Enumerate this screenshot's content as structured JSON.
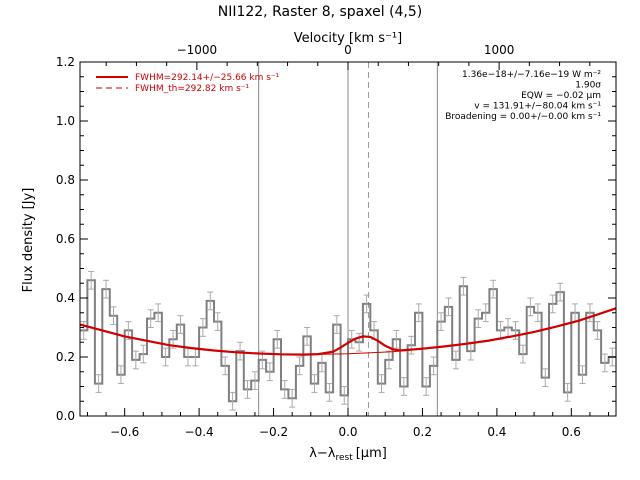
{
  "chart_data": {
    "type": "line",
    "title": "NII122, Raster 8, spaxel (4,5)",
    "xlabel": "λ−λ",
    "xlabel_sub": "rest",
    "xlabel_unit": "[μm]",
    "ylabel": "Flux density [Jy]",
    "top_axis_label": "Velocity [km s⁻¹]",
    "xlim": [
      -0.72,
      0.72
    ],
    "ylim": [
      0.0,
      1.2
    ],
    "x_ticks": [
      "−0.6",
      "−0.4",
      "−0.2",
      "0.0",
      "0.2",
      "0.4",
      "0.6"
    ],
    "x_tick_values": [
      -0.6,
      -0.4,
      -0.2,
      0.0,
      0.2,
      0.4,
      0.6
    ],
    "y_ticks": [
      "0.0",
      "0.2",
      "0.4",
      "0.6",
      "0.8",
      "1.0",
      "1.2"
    ],
    "y_tick_values": [
      0.0,
      0.2,
      0.4,
      0.6,
      0.8,
      1.0,
      1.2
    ],
    "top_ticks": [
      "−1000",
      "0",
      "1000"
    ],
    "top_tick_values": [
      -1000,
      0,
      1000
    ],
    "velocity_scale_um_per_kms": 0.000406,
    "vertical_lines": {
      "solid": [
        -0.24,
        0.0,
        0.24
      ],
      "dashed": [
        0.055
      ]
    },
    "legend": [
      {
        "label": "FWHM=292.14+/−25.66 km s⁻¹",
        "style": "solid",
        "color": "#d00000"
      },
      {
        "label": "FWHM_th=292.82 km s⁻¹",
        "style": "dashed",
        "color": "#d00000"
      }
    ],
    "annotations": [
      "1.36e−18+/−7.16e−19 W m⁻²",
      "1.90σ",
      "EQW = −0.02 μm",
      "v = 131.91+/−80.04 km s⁻¹",
      "Broadening = 0.00+/−0.00 km s⁻¹"
    ],
    "series": [
      {
        "name": "spectrum",
        "style": "step",
        "color": "#808080",
        "x": [
          -0.72,
          -0.7,
          -0.68,
          -0.66,
          -0.64,
          -0.62,
          -0.6,
          -0.58,
          -0.56,
          -0.54,
          -0.52,
          -0.5,
          -0.48,
          -0.46,
          -0.44,
          -0.42,
          -0.4,
          -0.38,
          -0.36,
          -0.34,
          -0.32,
          -0.3,
          -0.28,
          -0.26,
          -0.24,
          -0.22,
          -0.2,
          -0.18,
          -0.16,
          -0.14,
          -0.12,
          -0.1,
          -0.08,
          -0.06,
          -0.04,
          -0.02,
          0.0,
          0.02,
          0.04,
          0.06,
          0.08,
          0.1,
          0.12,
          0.14,
          0.16,
          0.18,
          0.2,
          0.22,
          0.24,
          0.26,
          0.28,
          0.3,
          0.32,
          0.34,
          0.36,
          0.38,
          0.4,
          0.42,
          0.44,
          0.46,
          0.48,
          0.5,
          0.52,
          0.54,
          0.56,
          0.58,
          0.6,
          0.62,
          0.64,
          0.66,
          0.68,
          0.7
        ],
        "y": [
          0.29,
          0.46,
          0.11,
          0.43,
          0.34,
          0.14,
          0.29,
          0.19,
          0.21,
          0.33,
          0.35,
          0.2,
          0.26,
          0.31,
          0.2,
          0.2,
          0.3,
          0.39,
          0.32,
          0.17,
          0.05,
          0.22,
          0.09,
          0.12,
          0.19,
          0.15,
          0.26,
          0.09,
          0.06,
          0.17,
          0.27,
          0.11,
          0.18,
          0.08,
          0.31,
          0.07,
          0.26,
          0.25,
          0.38,
          0.29,
          0.11,
          0.19,
          0.26,
          0.1,
          0.24,
          0.35,
          0.1,
          0.17,
          0.32,
          0.37,
          0.19,
          0.44,
          0.22,
          0.33,
          0.35,
          0.43,
          0.29,
          0.3,
          0.29,
          0.21,
          0.37,
          0.35,
          0.13,
          0.38,
          0.42,
          0.08,
          0.35,
          0.14,
          0.35,
          0.29,
          0.18,
          0.2
        ],
        "errors": [
          0.03,
          0.03,
          0.03,
          0.03,
          0.03,
          0.03,
          0.03,
          0.03,
          0.03,
          0.03,
          0.03,
          0.03,
          0.03,
          0.03,
          0.03,
          0.03,
          0.03,
          0.03,
          0.03,
          0.03,
          0.03,
          0.03,
          0.03,
          0.03,
          0.03,
          0.03,
          0.03,
          0.03,
          0.03,
          0.03,
          0.03,
          0.03,
          0.03,
          0.03,
          0.03,
          0.03,
          0.03,
          0.03,
          0.03,
          0.03,
          0.03,
          0.03,
          0.03,
          0.03,
          0.03,
          0.03,
          0.03,
          0.03,
          0.03,
          0.03,
          0.03,
          0.03,
          0.03,
          0.03,
          0.03,
          0.03,
          0.03,
          0.03,
          0.03,
          0.03,
          0.03,
          0.03,
          0.03,
          0.03,
          0.03,
          0.03,
          0.03,
          0.03,
          0.03,
          0.03,
          0.03,
          0.03
        ]
      },
      {
        "name": "fit",
        "style": "solid",
        "color": "#d00000",
        "x": [
          -0.72,
          -0.66,
          -0.6,
          -0.54,
          -0.48,
          -0.42,
          -0.36,
          -0.3,
          -0.24,
          -0.18,
          -0.12,
          -0.08,
          -0.04,
          -0.02,
          0.0,
          0.02,
          0.04,
          0.06,
          0.08,
          0.1,
          0.12,
          0.14,
          0.16,
          0.2,
          0.26,
          0.32,
          0.38,
          0.44,
          0.5,
          0.56,
          0.62,
          0.68,
          0.72
        ],
        "y": [
          0.31,
          0.29,
          0.27,
          0.255,
          0.24,
          0.23,
          0.222,
          0.216,
          0.212,
          0.209,
          0.208,
          0.21,
          0.218,
          0.232,
          0.248,
          0.262,
          0.27,
          0.268,
          0.255,
          0.238,
          0.226,
          0.222,
          0.224,
          0.228,
          0.236,
          0.245,
          0.256,
          0.27,
          0.285,
          0.303,
          0.323,
          0.348,
          0.365
        ]
      },
      {
        "name": "continuum",
        "style": "dashed",
        "color": "#d00000",
        "x": [
          -0.72,
          -0.6,
          -0.48,
          -0.36,
          -0.24,
          -0.12,
          0.0,
          0.12,
          0.24,
          0.36,
          0.48,
          0.6,
          0.72
        ],
        "y": [
          0.31,
          0.27,
          0.24,
          0.222,
          0.212,
          0.208,
          0.211,
          0.218,
          0.232,
          0.252,
          0.278,
          0.315,
          0.365
        ]
      }
    ]
  }
}
